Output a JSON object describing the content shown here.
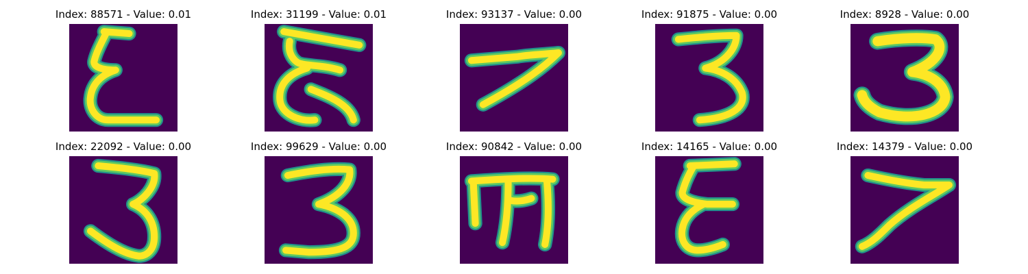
{
  "colors": {
    "background": "#440154",
    "halo": "#21918c",
    "mid": "#5ec962",
    "core": "#fde725"
  },
  "panels": [
    {
      "title": "Index: 88571 - Value: 0.01",
      "index": 88571,
      "value": 0.01,
      "glyph": "epsilon"
    },
    {
      "title": "Index: 31199 - Value: 0.01",
      "index": 31199,
      "value": 0.01,
      "glyph": "epsilon-wide"
    },
    {
      "title": "Index: 93137 - Value: 0.00",
      "index": 93137,
      "value": 0.0,
      "glyph": "seven-rotated"
    },
    {
      "title": "Index: 91875 - Value: 0.00",
      "index": 91875,
      "value": 0.0,
      "glyph": "three"
    },
    {
      "title": "Index: 8928 - Value: 0.00",
      "index": 8928,
      "value": 0.0,
      "glyph": "three-bold"
    },
    {
      "title": "Index: 22092 - Value: 0.00",
      "index": 22092,
      "value": 0.0,
      "glyph": "three-tall"
    },
    {
      "title": "Index: 99629 - Value: 0.00",
      "index": 99629,
      "value": 0.0,
      "glyph": "three"
    },
    {
      "title": "Index: 90842 - Value: 0.00",
      "index": 90842,
      "value": 0.0,
      "glyph": "m-rotated"
    },
    {
      "title": "Index: 14165 - Value: 0.00",
      "index": 14165,
      "value": 0.0,
      "glyph": "epsilon"
    },
    {
      "title": "Index: 14379 - Value: 0.00",
      "index": 14379,
      "value": 0.0,
      "glyph": "seven-rotated"
    }
  ]
}
